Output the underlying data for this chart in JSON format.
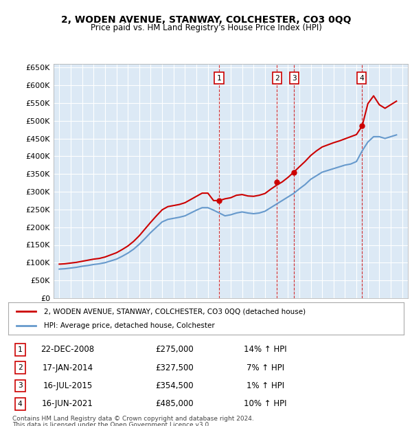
{
  "title": "2, WODEN AVENUE, STANWAY, COLCHESTER, CO3 0QQ",
  "subtitle": "Price paid vs. HM Land Registry's House Price Index (HPI)",
  "ylabel": "",
  "background_color": "#dce9f5",
  "plot_bg": "#dce9f5",
  "grid_color": "#ffffff",
  "red_color": "#cc0000",
  "blue_color": "#6699cc",
  "transactions": [
    {
      "num": 1,
      "date": "22-DEC-2008",
      "price": 275000,
      "pct": "14%",
      "x": 2008.97
    },
    {
      "num": 2,
      "date": "17-JAN-2014",
      "price": 327500,
      "pct": "7%",
      "x": 2014.05
    },
    {
      "num": 3,
      "date": "16-JUL-2015",
      "price": 354500,
      "pct": "1%",
      "x": 2015.54
    },
    {
      "num": 4,
      "date": "16-JUN-2021",
      "price": 485000,
      "pct": "10%",
      "x": 2021.46
    }
  ],
  "legend_line1": "2, WODEN AVENUE, STANWAY, COLCHESTER, CO3 0QQ (detached house)",
  "legend_line2": "HPI: Average price, detached house, Colchester",
  "footnote1": "Contains HM Land Registry data © Crown copyright and database right 2024.",
  "footnote2": "This data is licensed under the Open Government Licence v3.0.",
  "ylim_min": 0,
  "ylim_max": 660000,
  "yticks": [
    0,
    50000,
    100000,
    150000,
    200000,
    250000,
    300000,
    350000,
    400000,
    450000,
    500000,
    550000,
    600000,
    650000
  ],
  "hpi_years": [
    1995,
    1995.5,
    1996,
    1996.5,
    1997,
    1997.5,
    1998,
    1998.5,
    1999,
    1999.5,
    2000,
    2000.5,
    2001,
    2001.5,
    2002,
    2002.5,
    2003,
    2003.5,
    2004,
    2004.5,
    2005,
    2005.5,
    2006,
    2006.5,
    2007,
    2007.5,
    2008,
    2008.5,
    2009,
    2009.5,
    2010,
    2010.5,
    2011,
    2011.5,
    2012,
    2012.5,
    2013,
    2013.5,
    2014,
    2014.5,
    2015,
    2015.5,
    2016,
    2016.5,
    2017,
    2017.5,
    2018,
    2018.5,
    2019,
    2019.5,
    2020,
    2020.5,
    2021,
    2021.5,
    2022,
    2022.5,
    2023,
    2023.5,
    2024,
    2024.5
  ],
  "hpi_values": [
    82000,
    83000,
    85000,
    87000,
    90000,
    92000,
    95000,
    97000,
    100000,
    105000,
    110000,
    118000,
    127000,
    138000,
    152000,
    168000,
    185000,
    200000,
    215000,
    222000,
    225000,
    228000,
    232000,
    240000,
    248000,
    255000,
    255000,
    248000,
    240000,
    232000,
    235000,
    240000,
    243000,
    240000,
    238000,
    240000,
    245000,
    255000,
    265000,
    275000,
    285000,
    295000,
    308000,
    320000,
    335000,
    345000,
    355000,
    360000,
    365000,
    370000,
    375000,
    378000,
    385000,
    415000,
    440000,
    455000,
    455000,
    450000,
    455000,
    460000
  ],
  "red_years": [
    1995,
    1995.5,
    1996,
    1996.5,
    1997,
    1997.5,
    1998,
    1998.5,
    1999,
    1999.5,
    2000,
    2000.5,
    2001,
    2001.5,
    2002,
    2002.5,
    2003,
    2003.5,
    2004,
    2004.5,
    2005,
    2005.5,
    2006,
    2006.5,
    2007,
    2007.5,
    2008,
    2008.5,
    2009,
    2009.5,
    2010,
    2010.5,
    2011,
    2011.5,
    2012,
    2012.5,
    2013,
    2013.5,
    2014,
    2014.5,
    2015,
    2015.5,
    2016,
    2016.5,
    2017,
    2017.5,
    2018,
    2018.5,
    2019,
    2019.5,
    2020,
    2020.5,
    2021,
    2021.5,
    2022,
    2022.5,
    2023,
    2023.5,
    2024,
    2024.5
  ],
  "red_values": [
    96000,
    97000,
    99000,
    101000,
    104000,
    107000,
    110000,
    112000,
    116000,
    122000,
    128000,
    137000,
    147000,
    160000,
    176000,
    195000,
    214000,
    232000,
    249000,
    258000,
    261000,
    264000,
    269000,
    278000,
    287000,
    296000,
    296000,
    275000,
    275000,
    280000,
    283000,
    290000,
    292000,
    288000,
    287000,
    290000,
    295000,
    307000,
    318000,
    327500,
    340000,
    354500,
    370000,
    385000,
    402000,
    415000,
    426000,
    432000,
    438000,
    443000,
    449000,
    455000,
    461000,
    485000,
    548000,
    570000,
    545000,
    535000,
    545000,
    555000
  ]
}
